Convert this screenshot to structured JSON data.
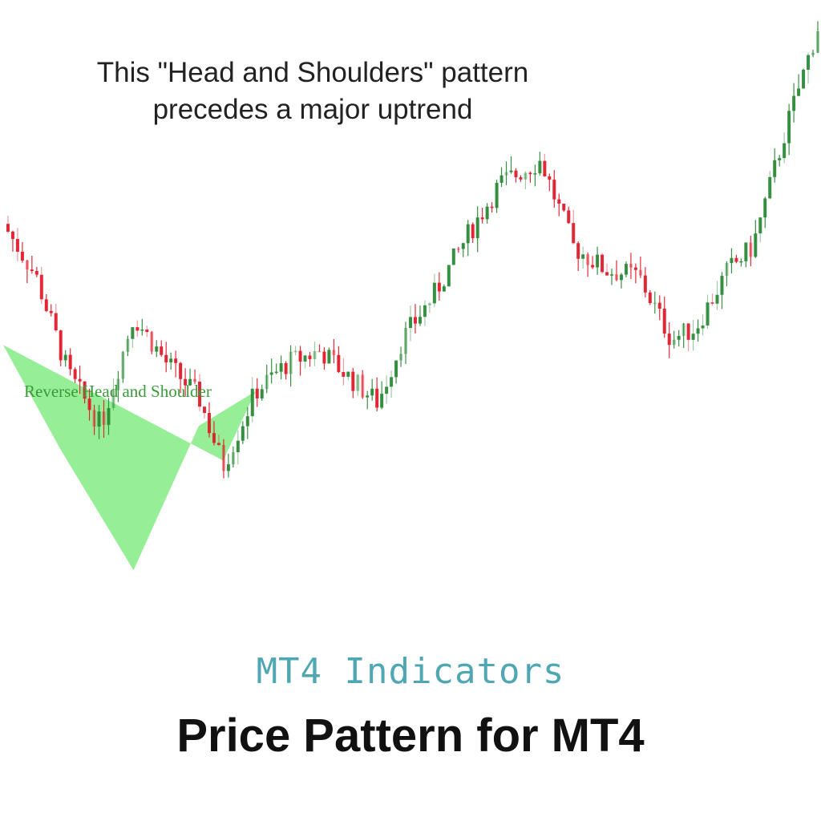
{
  "annotation": {
    "line1": "This \"Head and Shoulders\" pattern",
    "line2": "precedes a major uptrend"
  },
  "pattern_label": "Reverse Head and Shoulder",
  "footer": {
    "subtitle": "MT4 Indicators",
    "title": "Price Pattern for MT4"
  },
  "colors": {
    "bull": "#2e8b3a",
    "bear": "#e0202e",
    "pattern_fill": "#90ee90",
    "subtitle": "#4fa7b3"
  },
  "chart_data": {
    "type": "candlestick",
    "title": "",
    "xlabel": "",
    "ylabel": "",
    "grid": false,
    "ylim": [
      0,
      100
    ],
    "close_path": [
      [
        0,
        64
      ],
      [
        4,
        55
      ],
      [
        8,
        38
      ],
      [
        12,
        29
      ],
      [
        16,
        48
      ],
      [
        20,
        40
      ],
      [
        24,
        34
      ],
      [
        27,
        22
      ],
      [
        31,
        35
      ],
      [
        35,
        40
      ],
      [
        39,
        42
      ],
      [
        42,
        38
      ],
      [
        46,
        33
      ],
      [
        49,
        44
      ],
      [
        53,
        52
      ],
      [
        57,
        62
      ],
      [
        61,
        71
      ],
      [
        66,
        75
      ],
      [
        70,
        60
      ],
      [
        74,
        56
      ],
      [
        78,
        55
      ],
      [
        82,
        44
      ],
      [
        85,
        46
      ],
      [
        89,
        56
      ],
      [
        92,
        60
      ],
      [
        96,
        80
      ],
      [
        100,
        98
      ]
    ],
    "pattern": {
      "name": "Reverse Head and Shoulder",
      "points": [
        [
          0,
          43
        ],
        [
          7,
          25
        ],
        [
          16,
          4
        ],
        [
          24,
          29
        ],
        [
          31,
          35
        ],
        [
          27,
          23
        ]
      ]
    }
  }
}
